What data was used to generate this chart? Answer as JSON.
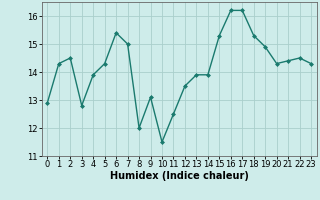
{
  "x": [
    0,
    1,
    2,
    3,
    4,
    5,
    6,
    7,
    8,
    9,
    10,
    11,
    12,
    13,
    14,
    15,
    16,
    17,
    18,
    19,
    20,
    21,
    22,
    23
  ],
  "y": [
    12.9,
    14.3,
    14.5,
    12.8,
    13.9,
    14.3,
    15.4,
    15.0,
    12.0,
    13.1,
    11.5,
    12.5,
    13.5,
    13.9,
    13.9,
    15.3,
    16.2,
    16.2,
    15.3,
    14.9,
    14.3,
    14.4,
    14.5,
    14.3
  ],
  "xlabel": "Humidex (Indice chaleur)",
  "ylim": [
    11,
    16.5
  ],
  "yticks": [
    11,
    12,
    13,
    14,
    15,
    16
  ],
  "xticks": [
    0,
    1,
    2,
    3,
    4,
    5,
    6,
    7,
    8,
    9,
    10,
    11,
    12,
    13,
    14,
    15,
    16,
    17,
    18,
    19,
    20,
    21,
    22,
    23
  ],
  "line_color": "#1a7a6e",
  "marker_color": "#1a7a6e",
  "bg_color": "#ceecea",
  "grid_color": "#aacfcc",
  "axis_color": "#666666",
  "tick_fontsize": 6.0,
  "xlabel_fontsize": 7.0
}
